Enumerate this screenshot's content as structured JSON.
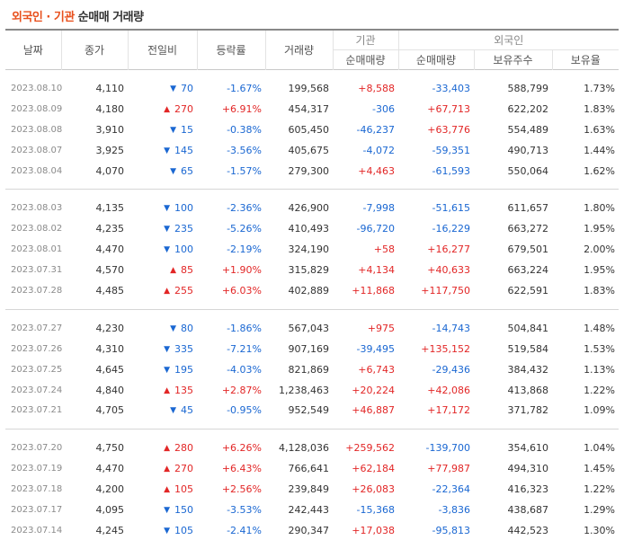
{
  "title": {
    "main": "외국인 · 기관",
    "sub": "순매매 거래량"
  },
  "headers": {
    "date": "날짜",
    "close": "종가",
    "change": "전일비",
    "rate": "등락률",
    "volume": "거래량",
    "inst_group": "기관",
    "foreign_group": "외국인",
    "inst_net": "순매매량",
    "foreign_net": "순매매량",
    "holdings": "보유주수",
    "holding_rate": "보유율"
  },
  "colors": {
    "up": "#e22626",
    "down": "#1a67d2",
    "accent": "#e8501d"
  },
  "groups": [
    [
      {
        "date": "2023.08.10",
        "close": "4,110",
        "dir": "down",
        "change": "70",
        "rate": "-1.67%",
        "volume": "199,568",
        "inst": "+8,588",
        "foreign": "-33,403",
        "holdings": "588,799",
        "holding_rate": "1.73%"
      },
      {
        "date": "2023.08.09",
        "close": "4,180",
        "dir": "up",
        "change": "270",
        "rate": "+6.91%",
        "volume": "454,317",
        "inst": "-306",
        "foreign": "+67,713",
        "holdings": "622,202",
        "holding_rate": "1.83%"
      },
      {
        "date": "2023.08.08",
        "close": "3,910",
        "dir": "down",
        "change": "15",
        "rate": "-0.38%",
        "volume": "605,450",
        "inst": "-46,237",
        "foreign": "+63,776",
        "holdings": "554,489",
        "holding_rate": "1.63%"
      },
      {
        "date": "2023.08.07",
        "close": "3,925",
        "dir": "down",
        "change": "145",
        "rate": "-3.56%",
        "volume": "405,675",
        "inst": "-4,072",
        "foreign": "-59,351",
        "holdings": "490,713",
        "holding_rate": "1.44%"
      },
      {
        "date": "2023.08.04",
        "close": "4,070",
        "dir": "down",
        "change": "65",
        "rate": "-1.57%",
        "volume": "279,300",
        "inst": "+4,463",
        "foreign": "-61,593",
        "holdings": "550,064",
        "holding_rate": "1.62%"
      }
    ],
    [
      {
        "date": "2023.08.03",
        "close": "4,135",
        "dir": "down",
        "change": "100",
        "rate": "-2.36%",
        "volume": "426,900",
        "inst": "-7,998",
        "foreign": "-51,615",
        "holdings": "611,657",
        "holding_rate": "1.80%"
      },
      {
        "date": "2023.08.02",
        "close": "4,235",
        "dir": "down",
        "change": "235",
        "rate": "-5.26%",
        "volume": "410,493",
        "inst": "-96,720",
        "foreign": "-16,229",
        "holdings": "663,272",
        "holding_rate": "1.95%"
      },
      {
        "date": "2023.08.01",
        "close": "4,470",
        "dir": "down",
        "change": "100",
        "rate": "-2.19%",
        "volume": "324,190",
        "inst": "+58",
        "foreign": "+16,277",
        "holdings": "679,501",
        "holding_rate": "2.00%"
      },
      {
        "date": "2023.07.31",
        "close": "4,570",
        "dir": "up",
        "change": "85",
        "rate": "+1.90%",
        "volume": "315,829",
        "inst": "+4,134",
        "foreign": "+40,633",
        "holdings": "663,224",
        "holding_rate": "1.95%"
      },
      {
        "date": "2023.07.28",
        "close": "4,485",
        "dir": "up",
        "change": "255",
        "rate": "+6.03%",
        "volume": "402,889",
        "inst": "+11,868",
        "foreign": "+117,750",
        "holdings": "622,591",
        "holding_rate": "1.83%"
      }
    ],
    [
      {
        "date": "2023.07.27",
        "close": "4,230",
        "dir": "down",
        "change": "80",
        "rate": "-1.86%",
        "volume": "567,043",
        "inst": "+975",
        "foreign": "-14,743",
        "holdings": "504,841",
        "holding_rate": "1.48%"
      },
      {
        "date": "2023.07.26",
        "close": "4,310",
        "dir": "down",
        "change": "335",
        "rate": "-7.21%",
        "volume": "907,169",
        "inst": "-39,495",
        "foreign": "+135,152",
        "holdings": "519,584",
        "holding_rate": "1.53%"
      },
      {
        "date": "2023.07.25",
        "close": "4,645",
        "dir": "down",
        "change": "195",
        "rate": "-4.03%",
        "volume": "821,869",
        "inst": "+6,743",
        "foreign": "-29,436",
        "holdings": "384,432",
        "holding_rate": "1.13%"
      },
      {
        "date": "2023.07.24",
        "close": "4,840",
        "dir": "up",
        "change": "135",
        "rate": "+2.87%",
        "volume": "1,238,463",
        "inst": "+20,224",
        "foreign": "+42,086",
        "holdings": "413,868",
        "holding_rate": "1.22%"
      },
      {
        "date": "2023.07.21",
        "close": "4,705",
        "dir": "down",
        "change": "45",
        "rate": "-0.95%",
        "volume": "952,549",
        "inst": "+46,887",
        "foreign": "+17,172",
        "holdings": "371,782",
        "holding_rate": "1.09%"
      }
    ],
    [
      {
        "date": "2023.07.20",
        "close": "4,750",
        "dir": "up",
        "change": "280",
        "rate": "+6.26%",
        "volume": "4,128,036",
        "inst": "+259,562",
        "foreign": "-139,700",
        "holdings": "354,610",
        "holding_rate": "1.04%"
      },
      {
        "date": "2023.07.19",
        "close": "4,470",
        "dir": "up",
        "change": "270",
        "rate": "+6.43%",
        "volume": "766,641",
        "inst": "+62,184",
        "foreign": "+77,987",
        "holdings": "494,310",
        "holding_rate": "1.45%"
      },
      {
        "date": "2023.07.18",
        "close": "4,200",
        "dir": "up",
        "change": "105",
        "rate": "+2.56%",
        "volume": "239,849",
        "inst": "+26,083",
        "foreign": "-22,364",
        "holdings": "416,323",
        "holding_rate": "1.22%"
      },
      {
        "date": "2023.07.17",
        "close": "4,095",
        "dir": "down",
        "change": "150",
        "rate": "-3.53%",
        "volume": "242,443",
        "inst": "-15,368",
        "foreign": "-3,836",
        "holdings": "438,687",
        "holding_rate": "1.29%"
      },
      {
        "date": "2023.07.14",
        "close": "4,245",
        "dir": "down",
        "change": "105",
        "rate": "-2.41%",
        "volume": "290,347",
        "inst": "+17,038",
        "foreign": "-95,813",
        "holdings": "442,523",
        "holding_rate": "1.30%"
      }
    ]
  ]
}
